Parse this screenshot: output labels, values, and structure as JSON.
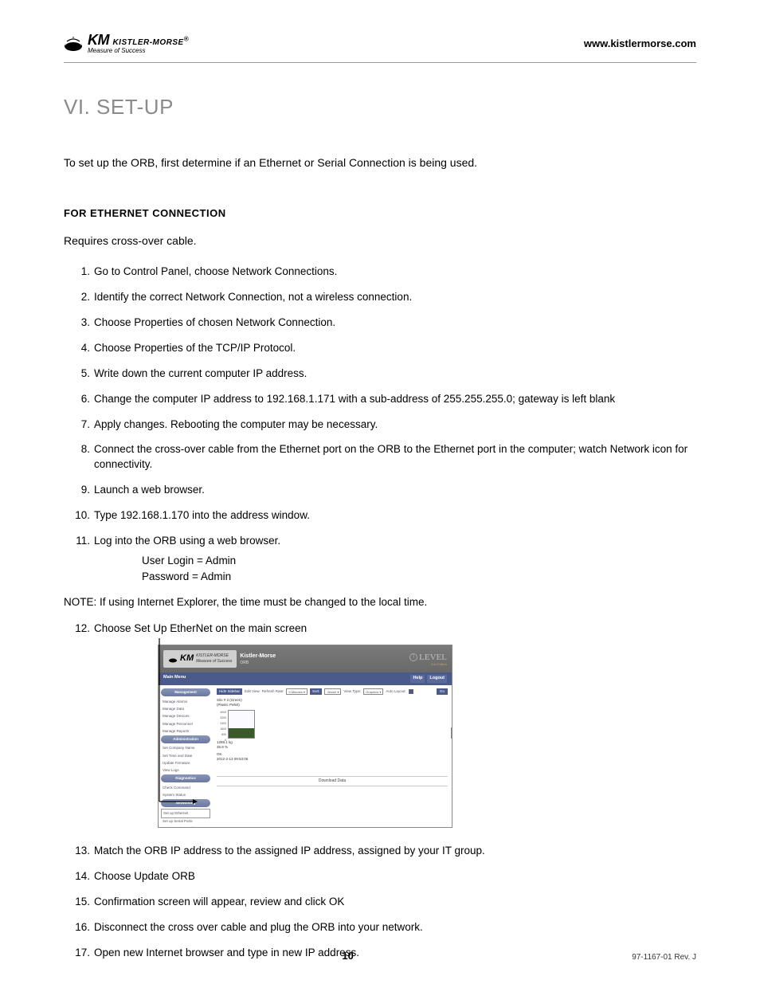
{
  "header": {
    "logo_km": "KM",
    "logo_name": "KISTLER-MORSE",
    "logo_reg": "®",
    "logo_tagline": "Measure of Success",
    "url": "www.kistlermorse.com"
  },
  "title": "VI.  SET-UP",
  "intro": "To set up the ORB, first determine if an Ethernet or Serial Connection is being used.",
  "section_heading": "FOR ETHERNET CONNECTION",
  "requires_text": "Requires cross-over cable.",
  "steps_a": [
    "Go to Control Panel, choose Network Connections.",
    "Identify the correct Network Connection, not a wireless connection.",
    "Choose Properties of chosen Network Connection.",
    "Choose Properties of the TCP/IP Protocol.",
    "Write down the current computer IP address.",
    "Change the computer IP address to 192.168.1.171 with a sub-address of 255.255.255.0; gateway is left blank",
    "Apply changes. Rebooting the computer may be necessary.",
    "Connect the cross-over cable from the Ethernet port on the ORB to the Ethernet port in the computer; watch Network icon for connectivity.",
    "Launch a web browser.",
    "Type 192.168.1.170 into the address window.",
    "Log into the ORB using a web browser."
  ],
  "credentials": {
    "user": "User Login = Admin",
    "pass": "Password = Admin"
  },
  "note": "NOTE: If using Internet Explorer, the time must be changed to the local time.",
  "step12": "Choose Set Up EtherNet on the main screen",
  "steps_b": [
    "Match the ORB IP address to the assigned IP address, assigned by your IT group.",
    "Choose Update ORB",
    "Confirmation screen will appear, review and click OK",
    "Disconnect the cross over cable and plug the ORB into your network.",
    "Open new Internet browser and type in new IP address."
  ],
  "screenshot": {
    "banner_km": "KM",
    "banner_name": "KISTLER-MORSE",
    "banner_tag": "Measure of Success",
    "banner_center1": "Kistler-Morse",
    "banner_center2": "ORB",
    "ilevel": "LEVEL",
    "ilevel_sub": "2nd Edition",
    "mainmenu": "Main Menu",
    "btn_help": "Help",
    "btn_logout": "Logout",
    "sidebar": {
      "cat1": "Management",
      "items1": [
        "Manage Alarms",
        "Manage Data",
        "Manage Devices",
        "Manage Personnel",
        "Manage Reports"
      ],
      "cat2": "Administration",
      "items2": [
        "Set Company Name",
        "Set Time and Date",
        "Update Firmware",
        "View Logs"
      ],
      "cat3": "Diagnostics",
      "items3": [
        "Check Command",
        "System Status"
      ],
      "cat4": "Networking",
      "items4": [
        "Set up Ethernet",
        "Set up Serial Ports",
        "Set up Device Push"
      ]
    },
    "toolbar": {
      "hide": "Hide Sidebar",
      "edit": "Edit View",
      "refresh": "Refresh Rate:",
      "refresh_val": "5 Minutes",
      "sort": "Sort:",
      "sort_val": "Vessel",
      "view": "View Type:",
      "view_val": "Graphics",
      "auto": "Auto Layout:",
      "go": "Go"
    },
    "silo": {
      "name1": "Silo # 3 (Green)",
      "name2": "(Plastic Pellet)",
      "ticks": [
        "4000",
        "3200",
        "2400",
        "1600",
        "800",
        "0"
      ],
      "val1": "1288.1 kg",
      "val2": "35.9 %",
      "val3": "OK",
      "val4": "2012-2-13 09:53:06"
    },
    "download": "Download Data"
  },
  "footer": {
    "page": "10",
    "doc": "97-1167-01 Rev. J"
  }
}
